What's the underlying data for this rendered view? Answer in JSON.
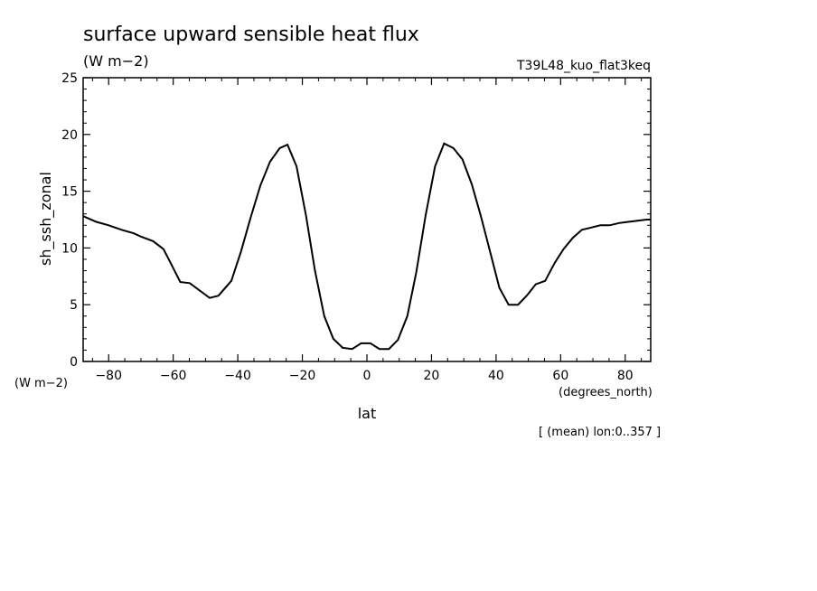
{
  "chart_data": {
    "type": "line",
    "title": "surface upward sensible heat flux",
    "units": "(W m−2)",
    "units_corner": "(W m−2)",
    "experiment": "T39L48_kuo_flat3keq",
    "ylabel": "sh_ssh_zonal",
    "xlabel": "lat",
    "xunits": "(degrees_north)",
    "note": "[ (mean) lon:0..357 ]",
    "xlim": [
      -87.9,
      87.9
    ],
    "ylim": [
      0,
      25
    ],
    "xticks": [
      -80,
      -60,
      -40,
      -20,
      0,
      20,
      40,
      60,
      80
    ],
    "xtick_labels": [
      "−80",
      "−60",
      "−40",
      "−20",
      "0",
      "20",
      "40",
      "60",
      "80"
    ],
    "yticks": [
      0,
      5,
      10,
      15,
      20,
      25
    ],
    "ytick_labels": [
      "0",
      "5",
      "10",
      "15",
      "20",
      "25"
    ],
    "grid": false,
    "line_color": "#000000",
    "series": [
      {
        "x": [
          -87.9,
          -83.8,
          -80.0,
          -76.0,
          -72.3,
          -70.0,
          -66.2,
          -63.0,
          -60.5,
          -57.8,
          -54.9,
          -48.7,
          -46.0,
          -42.0,
          -39.0,
          -36.0,
          -33.0,
          -30.0,
          -27.0,
          -24.6,
          -21.8,
          -18.9,
          -16.1,
          -13.2,
          -10.4,
          -7.5,
          -4.6,
          -1.8,
          1.1,
          3.9,
          6.8,
          9.6,
          12.5,
          15.3,
          18.2,
          21.1,
          23.9,
          26.8,
          29.6,
          32.5,
          35.3,
          38.2,
          41.0,
          43.9,
          46.8,
          49.5,
          52.3,
          55.2,
          58.2,
          60.9,
          63.8,
          66.6,
          69.5,
          72.3,
          75.2,
          78.1,
          80.9,
          83.8,
          86.6,
          87.9
        ],
        "y": [
          12.8,
          12.3,
          12.0,
          11.6,
          11.3,
          11.0,
          10.6,
          9.9,
          8.5,
          7.0,
          6.9,
          5.6,
          5.8,
          7.1,
          9.7,
          12.7,
          15.5,
          17.6,
          18.8,
          19.1,
          17.2,
          12.9,
          8.0,
          4.0,
          2.0,
          1.2,
          1.1,
          1.6,
          1.6,
          1.1,
          1.1,
          1.9,
          4.0,
          7.9,
          12.9,
          17.2,
          19.2,
          18.8,
          17.8,
          15.6,
          12.8,
          9.6,
          6.5,
          5.0,
          5.0,
          5.8,
          6.8,
          7.1,
          8.7,
          9.9,
          10.9,
          11.6,
          11.8,
          12.0,
          12.0,
          12.2,
          12.3,
          12.4,
          12.5,
          12.5
        ]
      }
    ]
  }
}
